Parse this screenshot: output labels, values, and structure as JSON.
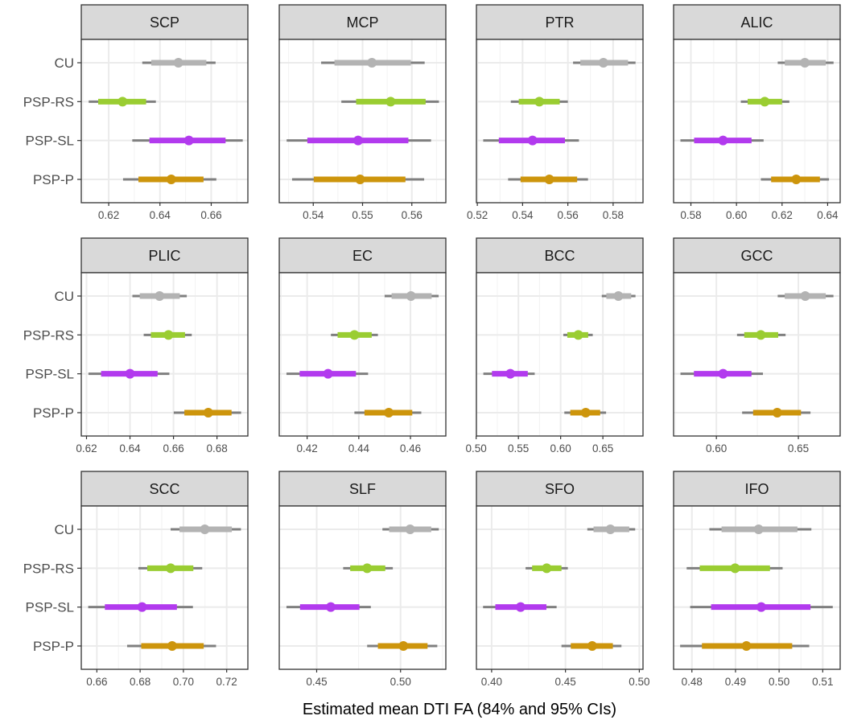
{
  "chart_data": {
    "type": "forest",
    "xlabel": "Estimated mean DTI FA (84% and 95% CIs)",
    "ylabel": "",
    "groups": [
      "CU",
      "PSP-RS",
      "PSP-SL",
      "PSP-P"
    ],
    "group_colors": {
      "CU": "#b3b3b3",
      "PSP-RS": "#9acd32",
      "PSP-SL": "#b23aee",
      "PSP-P": "#cd950c"
    },
    "ci95_color": "#7f7f7f",
    "value_order": [
      "lo95",
      "lo84",
      "estimate",
      "hi84",
      "hi95"
    ],
    "grid": true,
    "panels": [
      {
        "name": "SCP",
        "xlim": [
          0.6093,
          0.6743
        ],
        "ticks": [
          0.62,
          0.64,
          0.66
        ],
        "tick_labels": [
          "0.62",
          "0.64",
          "0.66"
        ],
        "values": {
          "CU": [
            0.6331,
            0.6366,
            0.6472,
            0.6581,
            0.6617
          ],
          "PSP-RS": [
            0.6122,
            0.6159,
            0.6254,
            0.6346,
            0.6384
          ],
          "PSP-SL": [
            0.6292,
            0.6359,
            0.6513,
            0.6656,
            0.6723
          ],
          "PSP-P": [
            0.6256,
            0.6316,
            0.6444,
            0.657,
            0.662
          ]
        }
      },
      {
        "name": "MCP",
        "xlim": [
          0.5331,
          0.5669
        ],
        "ticks": [
          0.54,
          0.55,
          0.56
        ],
        "tick_labels": [
          "0.54",
          "0.55",
          "0.56"
        ],
        "values": {
          "CU": [
            0.5416,
            0.5443,
            0.5519,
            0.5598,
            0.5626
          ],
          "PSP-RS": [
            0.5457,
            0.5487,
            0.5557,
            0.5628,
            0.5655
          ],
          "PSP-SL": [
            0.5346,
            0.5388,
            0.5491,
            0.5593,
            0.5639
          ],
          "PSP-P": [
            0.5357,
            0.5401,
            0.5495,
            0.5587,
            0.5625
          ]
        }
      },
      {
        "name": "PTR",
        "xlim": [
          0.5196,
          0.5932
        ],
        "ticks": [
          0.52,
          0.54,
          0.56,
          0.58
        ],
        "tick_labels": [
          "0.52",
          "0.54",
          "0.56",
          "0.58"
        ],
        "values": {
          "CU": [
            0.5623,
            0.5655,
            0.5757,
            0.5866,
            0.5899
          ],
          "PSP-RS": [
            0.5348,
            0.5383,
            0.5474,
            0.5564,
            0.56
          ],
          "PSP-SL": [
            0.5226,
            0.5295,
            0.5444,
            0.5587,
            0.5649
          ],
          "PSP-P": [
            0.5336,
            0.5391,
            0.5518,
            0.5641,
            0.5689
          ]
        }
      },
      {
        "name": "ALIC",
        "xlim": [
          0.5724,
          0.6455
        ],
        "ticks": [
          0.58,
          0.6,
          0.62,
          0.64
        ],
        "tick_labels": [
          "0.58",
          "0.60",
          "0.62",
          "0.64"
        ],
        "values": {
          "CU": [
            0.6181,
            0.6212,
            0.63,
            0.6392,
            0.6426
          ],
          "PSP-RS": [
            0.6019,
            0.6049,
            0.6124,
            0.62,
            0.6232
          ],
          "PSP-SL": [
            0.5754,
            0.5814,
            0.5941,
            0.6066,
            0.6119
          ],
          "PSP-P": [
            0.6107,
            0.6152,
            0.6262,
            0.6366,
            0.6406
          ]
        }
      },
      {
        "name": "PLIC",
        "xlim": [
          0.6176,
          0.6942
        ],
        "ticks": [
          0.62,
          0.64,
          0.66,
          0.68
        ],
        "tick_labels": [
          "0.62",
          "0.64",
          "0.66",
          "0.68"
        ],
        "values": {
          "CU": [
            0.6411,
            0.6445,
            0.6536,
            0.6629,
            0.6661
          ],
          "PSP-RS": [
            0.6463,
            0.6496,
            0.6577,
            0.6653,
            0.6684
          ],
          "PSP-SL": [
            0.6209,
            0.6267,
            0.64,
            0.6527,
            0.6581
          ],
          "PSP-P": [
            0.6601,
            0.665,
            0.676,
            0.6867,
            0.6911
          ]
        }
      },
      {
        "name": "EC",
        "xlim": [
          0.4092,
          0.4737
        ],
        "ticks": [
          0.42,
          0.44,
          0.46
        ],
        "tick_labels": [
          "0.42",
          "0.44",
          "0.46"
        ],
        "values": {
          "CU": [
            0.45,
            0.4527,
            0.4602,
            0.4682,
            0.4709
          ],
          "PSP-RS": [
            0.4292,
            0.4318,
            0.4383,
            0.445,
            0.4474
          ],
          "PSP-SL": [
            0.412,
            0.4171,
            0.4281,
            0.4389,
            0.4436
          ],
          "PSP-P": [
            0.4383,
            0.4422,
            0.4516,
            0.4607,
            0.4642
          ]
        }
      },
      {
        "name": "BCC",
        "xlim": [
          0.5003,
          0.6975
        ],
        "ticks": [
          0.5,
          0.55,
          0.6,
          0.65
        ],
        "tick_labels": [
          "0.50",
          "0.55",
          "0.60",
          "0.65"
        ],
        "values": {
          "CU": [
            0.6487,
            0.6541,
            0.6684,
            0.6835,
            0.6886
          ],
          "PSP-RS": [
            0.6032,
            0.6079,
            0.6209,
            0.6326,
            0.638
          ],
          "PSP-SL": [
            0.5085,
            0.5187,
            0.5405,
            0.5611,
            0.5693
          ],
          "PSP-P": [
            0.6044,
            0.6114,
            0.6297,
            0.6468,
            0.6538
          ]
        }
      },
      {
        "name": "GCC",
        "xlim": [
          0.5739,
          0.6755
        ],
        "ticks": [
          0.6,
          0.65
        ],
        "tick_labels": [
          "0.60",
          "0.65"
        ],
        "values": {
          "CU": [
            0.6374,
            0.6417,
            0.6542,
            0.6667,
            0.6714
          ],
          "PSP-RS": [
            0.6126,
            0.617,
            0.6271,
            0.6377,
            0.6422
          ],
          "PSP-SL": [
            0.5781,
            0.5863,
            0.6041,
            0.6214,
            0.6284
          ],
          "PSP-P": [
            0.6157,
            0.6224,
            0.6371,
            0.6516,
            0.6574
          ]
        }
      },
      {
        "name": "SCC",
        "xlim": [
          0.6528,
          0.7298
        ],
        "ticks": [
          0.66,
          0.68,
          0.7,
          0.72
        ],
        "tick_labels": [
          "0.66",
          "0.68",
          "0.70",
          "0.72"
        ],
        "values": {
          "CU": [
            0.6941,
            0.6982,
            0.7099,
            0.7224,
            0.7266
          ],
          "PSP-RS": [
            0.6792,
            0.6833,
            0.6941,
            0.7046,
            0.7087
          ],
          "PSP-SL": [
            0.656,
            0.6637,
            0.6809,
            0.697,
            0.7044
          ],
          "PSP-P": [
            0.674,
            0.6805,
            0.6948,
            0.7094,
            0.7151
          ]
        }
      },
      {
        "name": "SLF",
        "xlim": [
          0.4277,
          0.527
        ],
        "ticks": [
          0.45,
          0.5
        ],
        "tick_labels": [
          "0.45",
          "0.50"
        ],
        "values": {
          "CU": [
            0.4892,
            0.4932,
            0.5057,
            0.5183,
            0.5228
          ],
          "PSP-RS": [
            0.4658,
            0.47,
            0.4801,
            0.4909,
            0.4954
          ],
          "PSP-SL": [
            0.432,
            0.4401,
            0.4584,
            0.4755,
            0.4823
          ],
          "PSP-P": [
            0.4801,
            0.4865,
            0.5017,
            0.5161,
            0.5219
          ]
        }
      },
      {
        "name": "SFO",
        "xlim": [
          0.3897,
          0.5025
        ],
        "ticks": [
          0.4,
          0.45,
          0.5
        ],
        "tick_labels": [
          "0.40",
          "0.45",
          "0.50"
        ],
        "values": {
          "CU": [
            0.4648,
            0.469,
            0.4804,
            0.4932,
            0.4972
          ],
          "PSP-RS": [
            0.423,
            0.4274,
            0.4373,
            0.4473,
            0.4516
          ],
          "PSP-SL": [
            0.3942,
            0.4025,
            0.4196,
            0.4371,
            0.444
          ],
          "PSP-P": [
            0.4473,
            0.4536,
            0.4681,
            0.4821,
            0.4879
          ]
        }
      },
      {
        "name": "IFO",
        "xlim": [
          0.4758,
          0.514
        ],
        "ticks": [
          0.48,
          0.49,
          0.5,
          0.51
        ],
        "tick_labels": [
          "0.48",
          "0.49",
          "0.50",
          "0.51"
        ],
        "values": {
          "CU": [
            0.484,
            0.4868,
            0.4953,
            0.5042,
            0.5074
          ],
          "PSP-RS": [
            0.4788,
            0.4818,
            0.4899,
            0.4979,
            0.5008
          ],
          "PSP-SL": [
            0.4796,
            0.4844,
            0.4959,
            0.5072,
            0.5123
          ],
          "PSP-P": [
            0.4773,
            0.4823,
            0.4925,
            0.503,
            0.5069
          ]
        }
      }
    ]
  }
}
